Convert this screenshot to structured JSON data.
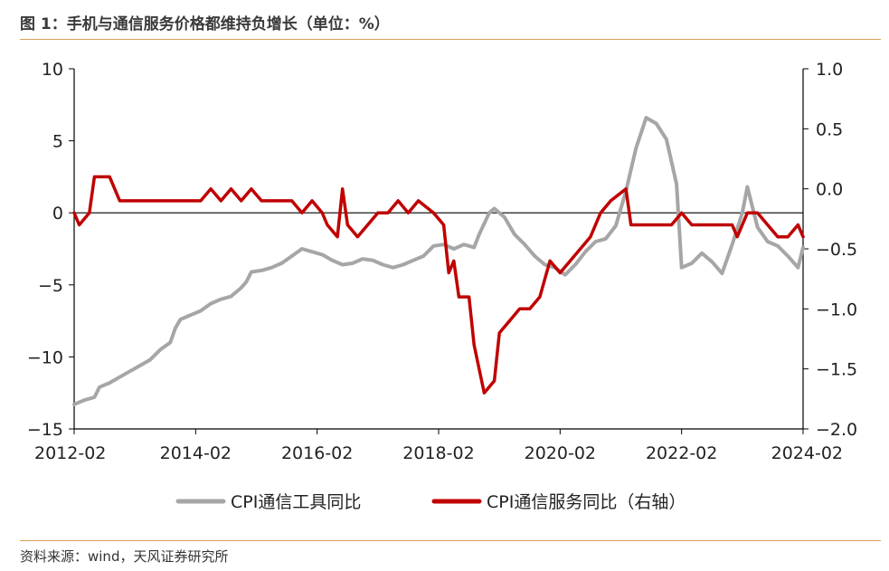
{
  "title": "图 1：手机与通信服务价格都维持负增长（单位：%）",
  "source": "资料来源：wind，天风证券研究所",
  "chart_data": {
    "type": "line",
    "x_ticks": [
      "2012-02",
      "2014-02",
      "2016-02",
      "2018-02",
      "2020-02",
      "2022-02",
      "2024-02"
    ],
    "x_range": [
      "2012-02",
      "2024-02"
    ],
    "y_left": {
      "range": [
        -15,
        10
      ],
      "ticks": [
        "10",
        "5",
        "0",
        "−5",
        "−10",
        "−15"
      ],
      "tick_values": [
        10,
        5,
        0,
        -5,
        -10,
        -15
      ]
    },
    "y_right": {
      "range": [
        -2.0,
        1.0
      ],
      "ticks": [
        "1.0",
        "0.5",
        "0.0",
        "−0.5",
        "−1.0",
        "−1.5",
        "−2.0"
      ],
      "tick_values": [
        1.0,
        0.5,
        0.0,
        -0.5,
        -1.0,
        -1.5,
        -2.0
      ]
    },
    "legend_position": "bottom",
    "series": [
      {
        "name": "CPI通信工具同比",
        "axis": "left",
        "color": "#a6a6a6",
        "points": [
          [
            "2012-02",
            -13.3
          ],
          [
            "2012-04",
            -13.0
          ],
          [
            "2012-06",
            -12.8
          ],
          [
            "2012-07",
            -12.1
          ],
          [
            "2012-09",
            -11.8
          ],
          [
            "2012-11",
            -11.4
          ],
          [
            "2013-01",
            -11.0
          ],
          [
            "2013-03",
            -10.6
          ],
          [
            "2013-05",
            -10.2
          ],
          [
            "2013-07",
            -9.5
          ],
          [
            "2013-09",
            -9.0
          ],
          [
            "2013-10",
            -8.0
          ],
          [
            "2013-11",
            -7.4
          ],
          [
            "2014-01",
            -7.1
          ],
          [
            "2014-03",
            -6.8
          ],
          [
            "2014-05",
            -6.3
          ],
          [
            "2014-07",
            -6.0
          ],
          [
            "2014-09",
            -5.8
          ],
          [
            "2014-11",
            -5.2
          ],
          [
            "2014-12",
            -4.8
          ],
          [
            "2015-01",
            -4.1
          ],
          [
            "2015-03",
            -4.0
          ],
          [
            "2015-05",
            -3.8
          ],
          [
            "2015-07",
            -3.5
          ],
          [
            "2015-09",
            -3.0
          ],
          [
            "2015-11",
            -2.5
          ],
          [
            "2016-01",
            -2.7
          ],
          [
            "2016-03",
            -2.9
          ],
          [
            "2016-05",
            -3.3
          ],
          [
            "2016-07",
            -3.6
          ],
          [
            "2016-09",
            -3.5
          ],
          [
            "2016-11",
            -3.2
          ],
          [
            "2017-01",
            -3.3
          ],
          [
            "2017-03",
            -3.6
          ],
          [
            "2017-05",
            -3.8
          ],
          [
            "2017-07",
            -3.6
          ],
          [
            "2017-09",
            -3.3
          ],
          [
            "2017-11",
            -3.0
          ],
          [
            "2018-01",
            -2.3
          ],
          [
            "2018-03",
            -2.2
          ],
          [
            "2018-05",
            -2.5
          ],
          [
            "2018-07",
            -2.2
          ],
          [
            "2018-09",
            -2.4
          ],
          [
            "2018-10",
            -1.5
          ],
          [
            "2018-12",
            0.0
          ],
          [
            "2019-01",
            0.3
          ],
          [
            "2019-03",
            -0.3
          ],
          [
            "2019-05",
            -1.5
          ],
          [
            "2019-07",
            -2.2
          ],
          [
            "2019-09",
            -3.0
          ],
          [
            "2019-11",
            -3.6
          ],
          [
            "2020-01",
            -3.8
          ],
          [
            "2020-03",
            -4.3
          ],
          [
            "2020-05",
            -3.6
          ],
          [
            "2020-07",
            -2.7
          ],
          [
            "2020-09",
            -2.0
          ],
          [
            "2020-11",
            -1.8
          ],
          [
            "2021-01",
            -0.9
          ],
          [
            "2021-03",
            1.5
          ],
          [
            "2021-05",
            4.5
          ],
          [
            "2021-07",
            6.6
          ],
          [
            "2021-09",
            6.2
          ],
          [
            "2021-11",
            5.1
          ],
          [
            "2022-01",
            2.0
          ],
          [
            "2022-02",
            -3.8
          ],
          [
            "2022-04",
            -3.5
          ],
          [
            "2022-06",
            -2.8
          ],
          [
            "2022-08",
            -3.4
          ],
          [
            "2022-10",
            -4.2
          ],
          [
            "2022-12",
            -2.2
          ],
          [
            "2023-02",
            0.0
          ],
          [
            "2023-03",
            1.8
          ],
          [
            "2023-05",
            -1.0
          ],
          [
            "2023-07",
            -2.0
          ],
          [
            "2023-09",
            -2.3
          ],
          [
            "2023-11",
            -3.0
          ],
          [
            "2024-01",
            -3.8
          ],
          [
            "2024-02",
            -2.4
          ]
        ]
      },
      {
        "name": "CPI通信服务同比（右轴）",
        "axis": "right",
        "color": "#c00000",
        "points": [
          [
            "2012-02",
            -0.2
          ],
          [
            "2012-03",
            -0.3
          ],
          [
            "2012-05",
            -0.2
          ],
          [
            "2012-06",
            0.1
          ],
          [
            "2012-09",
            0.1
          ],
          [
            "2012-11",
            -0.1
          ],
          [
            "2013-01",
            -0.1
          ],
          [
            "2013-03",
            -0.1
          ],
          [
            "2013-05",
            -0.1
          ],
          [
            "2013-07",
            -0.1
          ],
          [
            "2013-09",
            -0.1
          ],
          [
            "2013-11",
            -0.1
          ],
          [
            "2014-01",
            -0.1
          ],
          [
            "2014-03",
            -0.1
          ],
          [
            "2014-05",
            0.0
          ],
          [
            "2014-07",
            -0.1
          ],
          [
            "2014-09",
            0.0
          ],
          [
            "2014-11",
            -0.1
          ],
          [
            "2015-01",
            0.0
          ],
          [
            "2015-03",
            -0.1
          ],
          [
            "2015-05",
            -0.1
          ],
          [
            "2015-07",
            -0.1
          ],
          [
            "2015-09",
            -0.1
          ],
          [
            "2015-11",
            -0.2
          ],
          [
            "2016-01",
            -0.1
          ],
          [
            "2016-03",
            -0.2
          ],
          [
            "2016-04",
            -0.3
          ],
          [
            "2016-06",
            -0.4
          ],
          [
            "2016-07",
            0.0
          ],
          [
            "2016-08",
            -0.3
          ],
          [
            "2016-10",
            -0.4
          ],
          [
            "2016-12",
            -0.3
          ],
          [
            "2017-02",
            -0.2
          ],
          [
            "2017-04",
            -0.2
          ],
          [
            "2017-06",
            -0.1
          ],
          [
            "2017-08",
            -0.2
          ],
          [
            "2017-10",
            -0.1
          ],
          [
            "2018-01",
            -0.2
          ],
          [
            "2018-03",
            -0.3
          ],
          [
            "2018-04",
            -0.7
          ],
          [
            "2018-05",
            -0.6
          ],
          [
            "2018-06",
            -0.9
          ],
          [
            "2018-08",
            -0.9
          ],
          [
            "2018-09",
            -1.3
          ],
          [
            "2018-10",
            -1.5
          ],
          [
            "2018-11",
            -1.7
          ],
          [
            "2019-01",
            -1.6
          ],
          [
            "2019-02",
            -1.2
          ],
          [
            "2019-04",
            -1.1
          ],
          [
            "2019-06",
            -1.0
          ],
          [
            "2019-08",
            -1.0
          ],
          [
            "2019-10",
            -0.9
          ],
          [
            "2019-12",
            -0.6
          ],
          [
            "2020-02",
            -0.7
          ],
          [
            "2020-04",
            -0.6
          ],
          [
            "2020-06",
            -0.5
          ],
          [
            "2020-08",
            -0.4
          ],
          [
            "2020-10",
            -0.2
          ],
          [
            "2020-12",
            -0.1
          ],
          [
            "2021-03",
            0.0
          ],
          [
            "2021-04",
            -0.3
          ],
          [
            "2021-06",
            -0.3
          ],
          [
            "2021-08",
            -0.3
          ],
          [
            "2021-10",
            -0.3
          ],
          [
            "2021-12",
            -0.3
          ],
          [
            "2022-02",
            -0.2
          ],
          [
            "2022-04",
            -0.3
          ],
          [
            "2022-06",
            -0.3
          ],
          [
            "2022-08",
            -0.3
          ],
          [
            "2022-10",
            -0.3
          ],
          [
            "2022-12",
            -0.3
          ],
          [
            "2023-01",
            -0.4
          ],
          [
            "2023-03",
            -0.2
          ],
          [
            "2023-05",
            -0.2
          ],
          [
            "2023-07",
            -0.3
          ],
          [
            "2023-09",
            -0.4
          ],
          [
            "2023-11",
            -0.4
          ],
          [
            "2024-01",
            -0.3
          ],
          [
            "2024-02",
            -0.4
          ]
        ]
      }
    ]
  }
}
